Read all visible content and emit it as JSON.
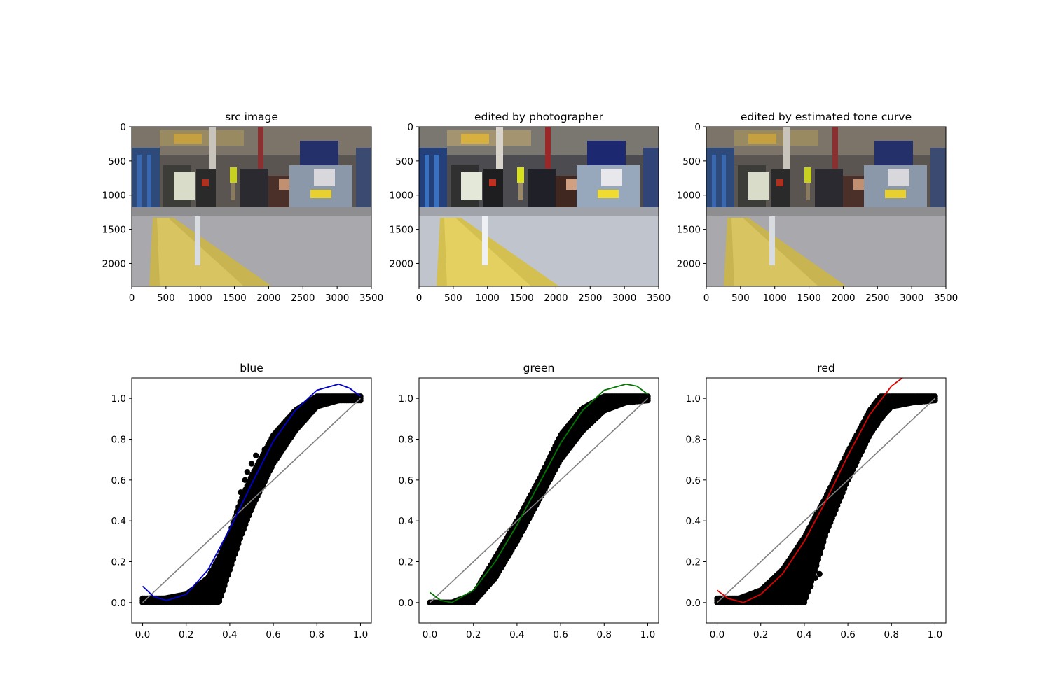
{
  "figure": {
    "image_panels": [
      {
        "title": "src image",
        "xticks": [
          0,
          500,
          1000,
          1500,
          2000,
          2500,
          3000,
          3500
        ],
        "yticks": [
          0,
          500,
          1000,
          1500,
          2000
        ]
      },
      {
        "title": "edited by photographer",
        "xticks": [
          0,
          500,
          1000,
          1500,
          2000,
          2500,
          3000,
          3500
        ],
        "yticks": [
          0,
          500,
          1000,
          1500,
          2000
        ]
      },
      {
        "title": "edited by estimated tone curve",
        "xticks": [
          0,
          500,
          1000,
          1500,
          2000,
          2500,
          3000,
          3500
        ],
        "yticks": [
          0,
          500,
          1000,
          1500,
          2000
        ]
      }
    ]
  },
  "chart_data": [
    {
      "type": "scatter",
      "title": "blue",
      "curve_color": "#0000cc",
      "identity_color": "#808080",
      "point_color": "#000000",
      "xlim": [
        -0.05,
        1.05
      ],
      "ylim": [
        -0.1,
        1.1
      ],
      "xticks": [
        0.0,
        0.2,
        0.4,
        0.6,
        0.8,
        1.0
      ],
      "yticks": [
        0.0,
        0.2,
        0.4,
        0.6,
        0.8,
        1.0
      ],
      "fit_curve": {
        "x": [
          0.0,
          0.05,
          0.11,
          0.2,
          0.3,
          0.4,
          0.5,
          0.6,
          0.7,
          0.8,
          0.9,
          0.95,
          1.0
        ],
        "y": [
          0.08,
          0.03,
          0.01,
          0.04,
          0.16,
          0.36,
          0.58,
          0.79,
          0.94,
          1.04,
          1.07,
          1.05,
          1.01
        ]
      },
      "scatter_band": {
        "x": [
          0.0,
          0.1,
          0.2,
          0.3,
          0.35,
          0.4,
          0.45,
          0.5,
          0.6,
          0.7,
          0.8,
          0.9,
          1.0
        ],
        "y_low": [
          0.0,
          0.0,
          0.0,
          0.0,
          0.0,
          0.16,
          0.32,
          0.46,
          0.68,
          0.84,
          0.96,
          0.99,
          0.99
        ],
        "y_high": [
          0.02,
          0.02,
          0.04,
          0.12,
          0.22,
          0.34,
          0.5,
          0.62,
          0.82,
          0.94,
          1.01,
          1.01,
          1.01
        ]
      },
      "outliers": [
        {
          "x": 0.47,
          "y": 0.6
        },
        {
          "x": 0.48,
          "y": 0.64
        },
        {
          "x": 0.5,
          "y": 0.68
        },
        {
          "x": 0.52,
          "y": 0.72
        },
        {
          "x": 0.56,
          "y": 0.75
        },
        {
          "x": 0.58,
          "y": 0.77
        },
        {
          "x": 0.45,
          "y": 0.54
        }
      ]
    },
    {
      "type": "scatter",
      "title": "green",
      "curve_color": "#007700",
      "identity_color": "#808080",
      "point_color": "#000000",
      "xlim": [
        -0.05,
        1.05
      ],
      "ylim": [
        -0.1,
        1.1
      ],
      "xticks": [
        0.0,
        0.2,
        0.4,
        0.6,
        0.8,
        1.0
      ],
      "yticks": [
        0.0,
        0.2,
        0.4,
        0.6,
        0.8,
        1.0
      ],
      "fit_curve": {
        "x": [
          0.0,
          0.05,
          0.1,
          0.2,
          0.3,
          0.4,
          0.5,
          0.6,
          0.7,
          0.8,
          0.9,
          0.95,
          1.0
        ],
        "y": [
          0.05,
          0.01,
          0.0,
          0.06,
          0.2,
          0.38,
          0.58,
          0.78,
          0.94,
          1.04,
          1.07,
          1.06,
          1.02
        ]
      },
      "scatter_band": {
        "x": [
          0.0,
          0.1,
          0.2,
          0.3,
          0.4,
          0.5,
          0.6,
          0.7,
          0.8,
          0.9,
          1.0
        ],
        "y_low": [
          0.0,
          0.0,
          0.0,
          0.12,
          0.3,
          0.5,
          0.7,
          0.84,
          0.94,
          0.98,
          0.99
        ],
        "y_high": [
          0.0,
          0.0,
          0.04,
          0.22,
          0.4,
          0.6,
          0.82,
          0.95,
          1.01,
          1.01,
          1.01
        ]
      },
      "outliers": []
    },
    {
      "type": "scatter",
      "title": "red",
      "curve_color": "#dd0000",
      "identity_color": "#808080",
      "point_color": "#000000",
      "xlim": [
        -0.05,
        1.05
      ],
      "ylim": [
        -0.1,
        1.1
      ],
      "xticks": [
        0.0,
        0.2,
        0.4,
        0.6,
        0.8,
        1.0
      ],
      "yticks": [
        0.0,
        0.2,
        0.4,
        0.6,
        0.8,
        1.0
      ],
      "fit_curve": {
        "x": [
          0.0,
          0.05,
          0.12,
          0.2,
          0.3,
          0.4,
          0.5,
          0.6,
          0.7,
          0.8,
          0.85,
          0.9
        ],
        "y": [
          0.06,
          0.02,
          0.0,
          0.04,
          0.14,
          0.3,
          0.5,
          0.72,
          0.92,
          1.06,
          1.1,
          1.14
        ]
      },
      "scatter_band": {
        "x": [
          0.0,
          0.1,
          0.2,
          0.3,
          0.4,
          0.45,
          0.5,
          0.6,
          0.7,
          0.75,
          0.8,
          0.9,
          1.0
        ],
        "y_low": [
          0.0,
          0.0,
          0.0,
          0.0,
          0.0,
          0.16,
          0.34,
          0.6,
          0.82,
          0.9,
          0.96,
          0.98,
          0.99
        ],
        "y_high": [
          0.02,
          0.02,
          0.06,
          0.16,
          0.32,
          0.42,
          0.52,
          0.74,
          0.94,
          1.01,
          1.01,
          1.01,
          1.01
        ]
      },
      "outliers": [
        {
          "x": 0.43,
          "y": 0.08
        },
        {
          "x": 0.45,
          "y": 0.12
        },
        {
          "x": 0.47,
          "y": 0.14
        },
        {
          "x": 0.4,
          "y": 0.06
        }
      ]
    }
  ]
}
